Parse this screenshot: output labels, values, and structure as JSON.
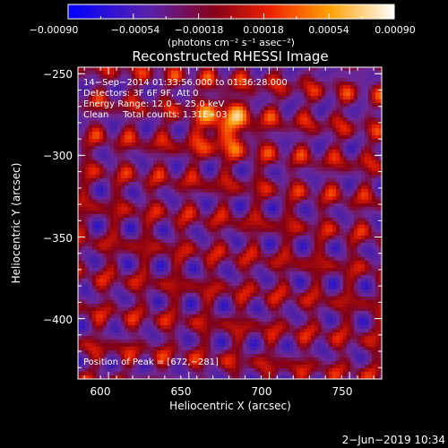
{
  "chart_data": {
    "type": "heatmap",
    "title": "Reconstructed RHESSI Image",
    "xlabel": "Heliocentric X (arcsec)",
    "ylabel": "Heliocentric Y (arcsec)",
    "xlim": [
      581,
      770
    ],
    "ylim": [
      -437,
      -246
    ],
    "x_ticks": [
      600,
      650,
      700,
      750
    ],
    "y_ticks": [
      -400,
      -350,
      -300,
      -250
    ],
    "x_tick_labels": [
      "600",
      "650",
      "700",
      "750"
    ],
    "y_tick_labels": [
      "−400",
      "−350",
      "−300",
      "−250"
    ],
    "colorbar": {
      "range": [
        -0.0009,
        0.0009
      ],
      "ticks": [
        "−0.00090",
        "−0.00054",
        "−0.00018",
        "0.00018",
        "0.00054",
        "0.00090"
      ],
      "units": "(photons cm⁻² s⁻¹ asec⁻²)",
      "colormap": "blue-purple-red-yellow-white"
    },
    "annotations": [
      "14−Sep−2014 01:33:56.000 to 01:36:28.000",
      "Detectors: 3F 6F 9F, Att 0",
      "Energy Range: 12.0 − 25.0 keV",
      "Clean     Total counts: 1.31E+03"
    ],
    "peak_label": "Position of Peak = [672,−281]",
    "peak": [
      672,
      -281
    ],
    "grid": false
  },
  "footer_date": "2−Jun−2019 10:34"
}
